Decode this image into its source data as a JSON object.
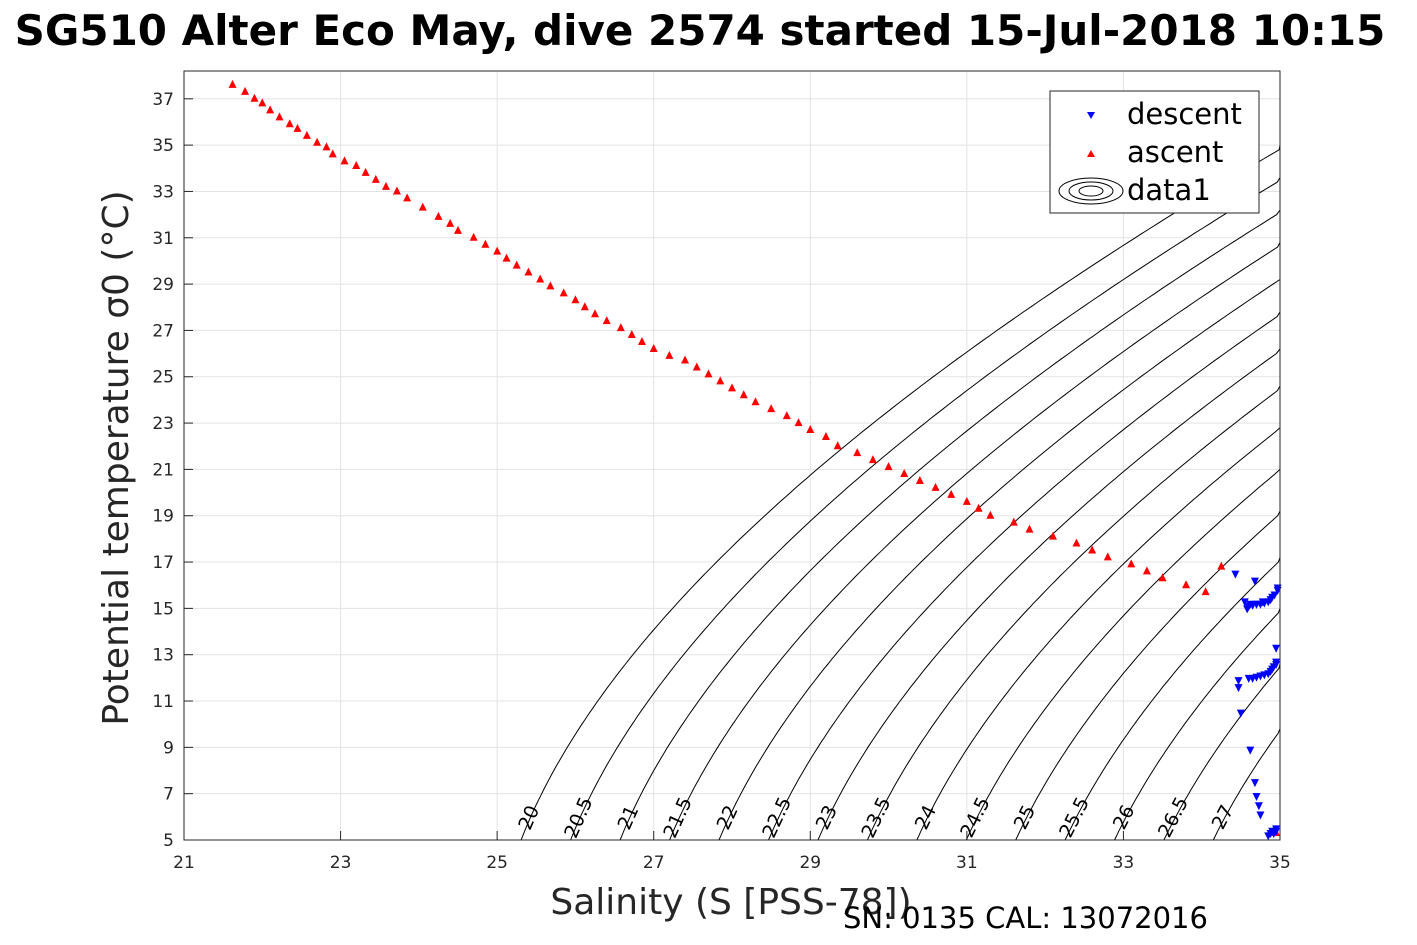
{
  "title": "SG510 Alter Eco May, dive 2574 started 15-Jul-2018 10:15",
  "footer": "SN: 0135  CAL: 13072016",
  "colors": {
    "descent": "#0000ff",
    "ascent": "#ff0000",
    "contour": "#000000",
    "grid": "#e3e3e3",
    "axis": "#262626"
  },
  "chart_data": {
    "type": "scatter",
    "xlabel": "Salinity (S [PSS-78])",
    "ylabel": "Potential temperature σ0 (°C)",
    "xlim": [
      21,
      35
    ],
    "ylim": [
      5,
      38.2
    ],
    "xticks": [
      21,
      23,
      25,
      27,
      29,
      31,
      33,
      35
    ],
    "yticks": [
      5,
      7,
      9,
      11,
      13,
      15,
      17,
      19,
      21,
      23,
      25,
      27,
      29,
      31,
      33,
      35,
      37
    ],
    "grid": true,
    "legend": {
      "position": "top-right",
      "entries": [
        "descent",
        "ascent",
        "data1"
      ]
    },
    "series": [
      {
        "name": "descent",
        "marker": "triangle-down",
        "x": [
          34.85,
          34.88,
          34.9,
          34.92,
          34.95,
          34.95,
          34.75,
          34.73,
          34.7,
          34.68,
          34.62,
          34.5,
          34.47,
          34.47,
          34.6,
          34.65,
          34.7,
          34.75,
          34.8,
          34.85,
          34.88,
          34.9,
          34.92,
          34.95,
          34.95,
          34.95,
          34.97,
          34.97,
          34.93,
          34.9,
          34.88,
          34.85,
          34.8,
          34.75,
          34.7,
          34.65,
          34.6,
          34.58,
          34.68,
          34.43,
          34.55,
          34.62,
          34.7,
          34.78
        ],
        "y": [
          5.2,
          5.3,
          5.4,
          5.3,
          5.5,
          5.4,
          6.1,
          6.5,
          6.9,
          7.5,
          8.9,
          10.5,
          11.6,
          11.9,
          12.0,
          12.0,
          12.05,
          12.1,
          12.15,
          12.2,
          12.3,
          12.4,
          12.5,
          12.6,
          12.7,
          13.3,
          15.9,
          15.8,
          15.6,
          15.5,
          15.4,
          15.3,
          15.25,
          15.2,
          15.2,
          15.15,
          15.1,
          15.0,
          16.2,
          16.5,
          15.3,
          15.2,
          15.2,
          15.3
        ]
      },
      {
        "name": "ascent",
        "marker": "triangle-up",
        "x": [
          21.62,
          21.78,
          21.9,
          22.0,
          22.1,
          22.22,
          22.35,
          22.45,
          22.57,
          22.7,
          22.82,
          22.9,
          23.05,
          23.2,
          23.32,
          23.45,
          23.58,
          23.72,
          23.85,
          24.05,
          24.25,
          24.4,
          24.5,
          24.7,
          24.85,
          25.0,
          25.12,
          25.25,
          25.4,
          25.55,
          25.68,
          25.85,
          26.0,
          26.12,
          26.25,
          26.4,
          26.58,
          26.72,
          26.85,
          27.0,
          27.2,
          27.4,
          27.55,
          27.7,
          27.85,
          28.0,
          28.15,
          28.3,
          28.5,
          28.7,
          28.85,
          29.0,
          29.2,
          29.35,
          29.6,
          29.8,
          30.0,
          30.2,
          30.4,
          30.6,
          30.8,
          31.0,
          31.15,
          31.3,
          31.6,
          31.8,
          32.1,
          32.4,
          32.6,
          32.8,
          33.1,
          33.3,
          33.5,
          33.8,
          34.05,
          34.25,
          34.95
        ],
        "y": [
          37.6,
          37.3,
          37.0,
          36.8,
          36.5,
          36.2,
          35.9,
          35.7,
          35.4,
          35.1,
          34.9,
          34.6,
          34.3,
          34.1,
          33.8,
          33.5,
          33.2,
          33.0,
          32.7,
          32.3,
          31.9,
          31.6,
          31.3,
          31.0,
          30.7,
          30.4,
          30.1,
          29.8,
          29.5,
          29.2,
          28.9,
          28.6,
          28.3,
          28.0,
          27.7,
          27.4,
          27.1,
          26.8,
          26.5,
          26.2,
          25.9,
          25.7,
          25.4,
          25.1,
          24.8,
          24.5,
          24.2,
          23.9,
          23.6,
          23.3,
          23.0,
          22.7,
          22.4,
          22.0,
          21.7,
          21.4,
          21.1,
          20.8,
          20.5,
          20.2,
          19.9,
          19.6,
          19.3,
          19.0,
          18.7,
          18.4,
          18.1,
          17.8,
          17.5,
          17.2,
          16.9,
          16.6,
          16.3,
          16.0,
          15.7,
          16.8,
          5.3
        ]
      },
      {
        "name": "data1",
        "type": "contour",
        "levels": [
          20,
          20.5,
          21,
          21.5,
          22,
          22.5,
          23,
          23.5,
          24,
          24.5,
          25,
          25.5,
          26,
          26.5,
          27
        ]
      }
    ]
  }
}
